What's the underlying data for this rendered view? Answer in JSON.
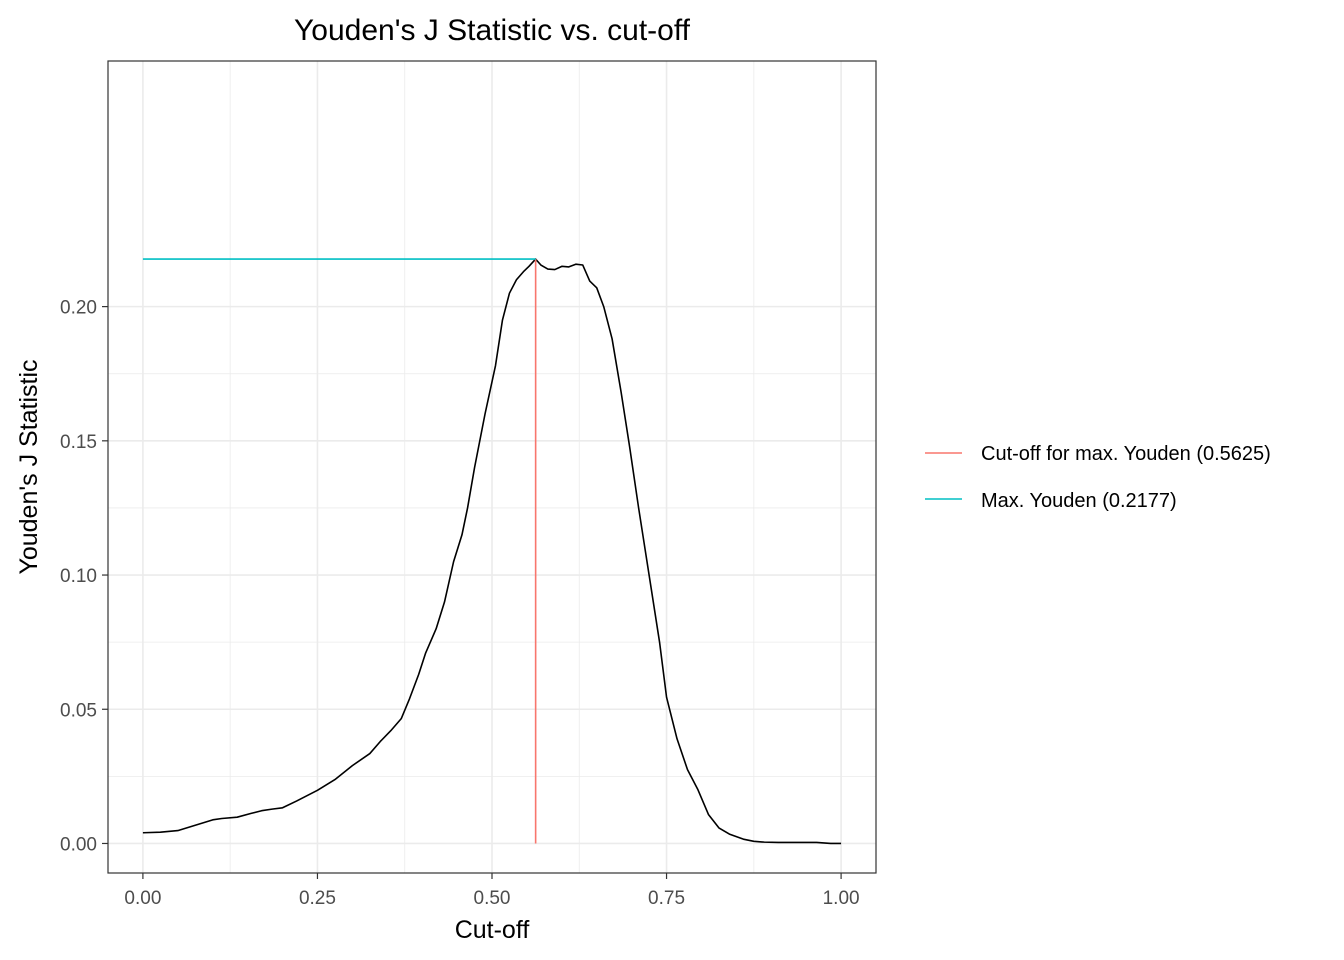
{
  "chart_data": {
    "type": "line",
    "title": "Youden's J Statistic vs. cut-off",
    "xlabel": "Cut-off",
    "ylabel": "Youden's J Statistic",
    "xlim": [
      -0.05,
      1.05
    ],
    "ylim": [
      -0.011,
      0.2915
    ],
    "x_ticks": [
      0,
      0.25,
      0.5,
      0.75,
      1
    ],
    "x_tick_labels": [
      "0.00",
      "0.25",
      "0.50",
      "0.75",
      "1.00"
    ],
    "y_ticks": [
      0,
      0.05,
      0.1,
      0.15,
      0.2
    ],
    "y_tick_labels": [
      "0.00",
      "0.05",
      "0.10",
      "0.15",
      "0.20"
    ],
    "grid": true,
    "legend_position": "right",
    "colors": {
      "curve": "#000000",
      "cutoff_line": "#F8766D",
      "max_line": "#00BFC4",
      "grid": "#ebebeb",
      "panel_border": "#333333"
    },
    "series": [
      {
        "kind": "curve",
        "x": [
          0.0,
          0.025,
          0.05,
          0.075,
          0.1,
          0.113,
          0.135,
          0.155,
          0.17,
          0.185,
          0.2,
          0.22,
          0.25,
          0.275,
          0.3,
          0.325,
          0.34,
          0.355,
          0.37,
          0.382,
          0.395,
          0.405,
          0.42,
          0.432,
          0.445,
          0.457,
          0.465,
          0.475,
          0.49,
          0.505,
          0.515,
          0.525,
          0.535,
          0.545,
          0.553,
          0.5625,
          0.57,
          0.58,
          0.59,
          0.6,
          0.61,
          0.62,
          0.63,
          0.64,
          0.65,
          0.66,
          0.672,
          0.685,
          0.697,
          0.71,
          0.725,
          0.74,
          0.75,
          0.765,
          0.78,
          0.795,
          0.81,
          0.825,
          0.84,
          0.86,
          0.875,
          0.89,
          0.91,
          0.93,
          0.95,
          0.965,
          0.975,
          0.985,
          1.0
        ],
        "y": [
          0.004,
          0.0042,
          0.0048,
          0.0068,
          0.0088,
          0.0093,
          0.0098,
          0.0112,
          0.0122,
          0.0128,
          0.0133,
          0.0158,
          0.0198,
          0.0238,
          0.029,
          0.0335,
          0.038,
          0.042,
          0.0465,
          0.054,
          0.063,
          0.071,
          0.08,
          0.09,
          0.105,
          0.115,
          0.125,
          0.14,
          0.16,
          0.178,
          0.195,
          0.205,
          0.21,
          0.213,
          0.215,
          0.2177,
          0.2155,
          0.214,
          0.2138,
          0.215,
          0.2148,
          0.2158,
          0.2155,
          0.2095,
          0.207,
          0.2,
          0.188,
          0.168,
          0.148,
          0.125,
          0.1,
          0.075,
          0.0545,
          0.039,
          0.0275,
          0.02,
          0.0108,
          0.0058,
          0.0035,
          0.0016,
          0.0008,
          0.0005,
          0.0004,
          0.0004,
          0.0004,
          0.0004,
          0.0002,
          0.0,
          0.0
        ]
      },
      {
        "kind": "vertical-line",
        "name": "Cut-off for max. Youden (0.5625)",
        "x": 0.5625,
        "y_range": [
          0,
          0.2177
        ]
      },
      {
        "kind": "horizontal-line",
        "name": "Max. Youden (0.2177)",
        "y": 0.2177,
        "x_range": [
          0,
          0.5625
        ]
      }
    ]
  }
}
